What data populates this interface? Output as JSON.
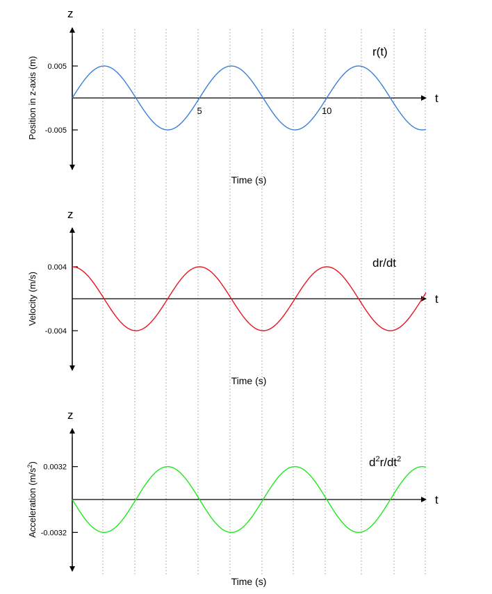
{
  "chart_data": [
    {
      "type": "line",
      "title": "",
      "label": "r(t)",
      "xlabel": "Time (s)",
      "ylabel": "Position in z-axis (m)",
      "axis_z": "z",
      "axis_t": "t",
      "x_ticks": [
        {
          "value": 5,
          "label": "5"
        },
        {
          "value": 10,
          "label": "10"
        }
      ],
      "y_ticks": [
        {
          "value": 0.005,
          "label": "0.005"
        },
        {
          "value": -0.005,
          "label": "-0.005"
        }
      ],
      "xlim": [
        0,
        13.9
      ],
      "ylim": [
        -0.0053,
        0.0053
      ],
      "color": "#3a7fd5",
      "period_s": 5,
      "amplitude": 0.005,
      "phase": "sine",
      "grid": "vertical dotted"
    },
    {
      "type": "line",
      "title": "",
      "label": "dr/dt",
      "xlabel": "Time (s)",
      "ylabel": "Velocity (m/s)",
      "axis_z": "z",
      "axis_t": "t",
      "x_ticks": [],
      "y_ticks": [
        {
          "value": 0.004,
          "label": "0.004"
        },
        {
          "value": -0.004,
          "label": "-0.004"
        }
      ],
      "xlim": [
        0,
        13.9
      ],
      "ylim": [
        -0.0047,
        0.0047
      ],
      "color": "#e8141c",
      "period_s": 5,
      "amplitude": 0.004,
      "phase": "cosine",
      "grid": "vertical dotted"
    },
    {
      "type": "line",
      "title": "",
      "label": "d2r/dt2",
      "label_parts": {
        "a": "d",
        "sup1": "2",
        "b": "r/dt",
        "sup2": "2"
      },
      "xlabel": "Time (s)",
      "ylabel": "Acceleration (m/s2)",
      "ylabel_parts": {
        "a": "Acceleration (m/s",
        "sup": "2",
        "b": ")"
      },
      "axis_z": "z",
      "axis_t": "t",
      "x_ticks": [],
      "y_ticks": [
        {
          "value": 0.0032,
          "label": "0.0032"
        },
        {
          "value": -0.0032,
          "label": "-0.0032"
        }
      ],
      "xlim": [
        0,
        13.9
      ],
      "ylim": [
        -0.0034,
        0.0034
      ],
      "color": "#1fe81f",
      "period_s": 5,
      "amplitude": 0.0032,
      "phase": "negative sine",
      "grid": "vertical dotted"
    }
  ]
}
